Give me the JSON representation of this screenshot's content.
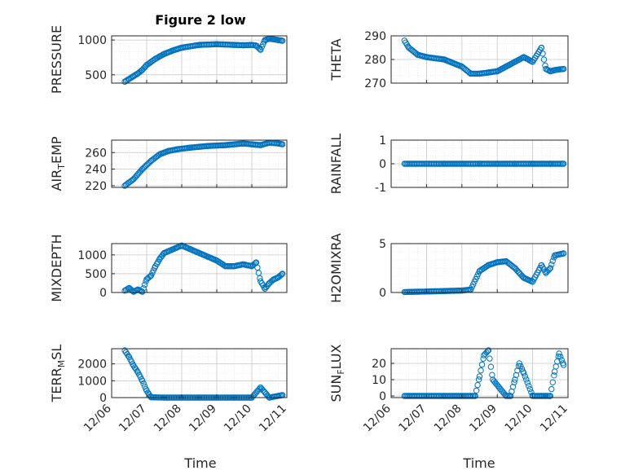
{
  "figure": {
    "title": "Figure 2 low",
    "xlabel": "Time"
  },
  "colors": {
    "marker": "#0072BD",
    "axis": "#262626",
    "grid": "#c8c8c8"
  },
  "chart_data": [
    {
      "type": "scatter",
      "ylabel_main": "PRESSURE",
      "ylabel_sub": "",
      "ylim": [
        380,
        1060
      ],
      "yticks": [
        "500",
        "1000"
      ],
      "ytick_values": [
        500,
        1000
      ],
      "xlim": [
        "12/06",
        "12/11"
      ],
      "xticks": [],
      "grid": true,
      "x": [
        "12/06 09:00",
        "12/06 12:00",
        "12/06 15:00",
        "12/06 18:00",
        "12/06 21:00",
        "12/07 00:00",
        "12/07 06:00",
        "12/07 12:00",
        "12/07 18:00",
        "12/08 00:00",
        "12/08 12:00",
        "12/09 00:00",
        "12/09 12:00",
        "12/09 18:00",
        "12/10 00:00",
        "12/10 03:00",
        "12/10 06:00",
        "12/10 09:00",
        "12/10 12:00",
        "12/10 15:00",
        "12/10 18:00",
        "12/10 21:00"
      ],
      "y": [
        400,
        440,
        480,
        520,
        570,
        640,
        730,
        800,
        850,
        890,
        930,
        940,
        930,
        925,
        930,
        920,
        860,
        1000,
        1020,
        1010,
        1000,
        990
      ]
    },
    {
      "type": "scatter",
      "ylabel_main": "THETA",
      "ylabel_sub": "",
      "ylim": [
        270,
        290
      ],
      "yticks": [
        "270",
        "280",
        "290"
      ],
      "ytick_values": [
        270,
        280,
        290
      ],
      "xlim": [
        "12/06",
        "12/11"
      ],
      "xticks": [],
      "grid": true,
      "x": [
        "12/06 09:00",
        "12/06 12:00",
        "12/06 18:00",
        "12/07 00:00",
        "12/07 12:00",
        "12/08 00:00",
        "12/08 06:00",
        "12/08 12:00",
        "12/08 18:00",
        "12/09 00:00",
        "12/09 06:00",
        "12/09 12:00",
        "12/09 18:00",
        "12/10 00:00",
        "12/10 06:00",
        "12/10 09:00",
        "12/10 12:00",
        "12/10 15:00",
        "12/10 18:00",
        "12/10 21:00"
      ],
      "y": [
        288,
        285,
        282,
        281,
        280,
        277,
        274,
        274,
        274.5,
        275,
        277,
        279,
        281,
        279,
        285,
        276,
        275,
        275.5,
        275.8,
        276
      ]
    },
    {
      "type": "scatter",
      "ylabel_main": "AIR",
      "ylabel_sub": "T",
      "ylabel_tail": "EMP",
      "ylim": [
        218,
        275
      ],
      "yticks": [
        "220",
        "240",
        "260"
      ],
      "ytick_values": [
        220,
        240,
        260
      ],
      "xlim": [
        "12/06",
        "12/11"
      ],
      "xticks": [],
      "grid": true,
      "x": [
        "12/06 09:00",
        "12/06 15:00",
        "12/06 21:00",
        "12/07 03:00",
        "12/07 09:00",
        "12/07 15:00",
        "12/07 21:00",
        "12/08 06:00",
        "12/08 18:00",
        "12/09 06:00",
        "12/09 18:00",
        "12/10 00:00",
        "12/10 06:00",
        "12/10 12:00",
        "12/10 18:00",
        "12/10 21:00"
      ],
      "y": [
        220,
        228,
        240,
        250,
        258,
        262,
        264,
        266,
        268,
        269,
        271,
        270,
        269,
        272,
        271,
        270
      ]
    },
    {
      "type": "scatter",
      "ylabel_main": "RAINFALL",
      "ylabel_sub": "",
      "ylim": [
        -1,
        1
      ],
      "yticks": [
        "-1",
        "0",
        "1"
      ],
      "ytick_values": [
        -1,
        0,
        1
      ],
      "xlim": [
        "12/06",
        "12/11"
      ],
      "xticks": [],
      "grid": true,
      "x": [
        "12/06 09:00",
        "12/07 00:00",
        "12/07 12:00",
        "12/08 00:00",
        "12/08 12:00",
        "12/09 00:00",
        "12/09 12:00",
        "12/10 00:00",
        "12/10 12:00",
        "12/10 21:00"
      ],
      "y": [
        0,
        0,
        0,
        0,
        0,
        0,
        0,
        0,
        0,
        0
      ]
    },
    {
      "type": "scatter",
      "ylabel_main": "MIXDEPTH",
      "ylabel_sub": "",
      "ylim": [
        0,
        1300
      ],
      "yticks": [
        "0",
        "500",
        "1000"
      ],
      "ytick_values": [
        0,
        500,
        1000
      ],
      "xlim": [
        "12/06",
        "12/11"
      ],
      "xticks": [],
      "grid": true,
      "x": [
        "12/06 09:00",
        "12/06 12:00",
        "12/06 15:00",
        "12/06 18:00",
        "12/06 21:00",
        "12/07 00:00",
        "12/07 03:00",
        "12/07 06:00",
        "12/07 09:00",
        "12/07 12:00",
        "12/07 18:00",
        "12/08 00:00",
        "12/08 06:00",
        "12/08 12:00",
        "12/08 18:00",
        "12/09 00:00",
        "12/09 06:00",
        "12/09 12:00",
        "12/09 18:00",
        "12/10 00:00",
        "12/10 03:00",
        "12/10 06:00",
        "12/10 09:00",
        "12/10 12:00",
        "12/10 15:00",
        "12/10 18:00",
        "12/10 21:00"
      ],
      "y": [
        50,
        120,
        20,
        80,
        20,
        350,
        450,
        700,
        900,
        1050,
        1150,
        1250,
        1150,
        1050,
        950,
        850,
        700,
        700,
        750,
        700,
        800,
        300,
        100,
        250,
        350,
        400,
        500
      ]
    },
    {
      "type": "scatter",
      "ylabel_main": "H2OMIXRA",
      "ylabel_sub": "",
      "ylim": [
        0,
        5
      ],
      "yticks": [
        "0",
        "5"
      ],
      "ytick_values": [
        0,
        5
      ],
      "xlim": [
        "12/06",
        "12/11"
      ],
      "xticks": [],
      "grid": true,
      "x": [
        "12/06 09:00",
        "12/07 00:00",
        "12/07 12:00",
        "12/08 00:00",
        "12/08 06:00",
        "12/08 12:00",
        "12/08 18:00",
        "12/09 00:00",
        "12/09 06:00",
        "12/09 12:00",
        "12/09 15:00",
        "12/09 18:00",
        "12/10 00:00",
        "12/10 06:00",
        "12/10 09:00",
        "12/10 12:00",
        "12/10 15:00",
        "12/10 21:00"
      ],
      "y": [
        0.05,
        0.1,
        0.15,
        0.2,
        0.3,
        2.2,
        2.8,
        3.1,
        3.2,
        2.5,
        2.0,
        1.5,
        1.1,
        2.8,
        2.0,
        2.5,
        3.8,
        4.0
      ]
    },
    {
      "type": "scatter",
      "ylabel_main": "TERR",
      "ylabel_sub": "M",
      "ylabel_tail": "SL",
      "ylim": [
        0,
        2900
      ],
      "yticks": [
        "0",
        "1000",
        "2000"
      ],
      "ytick_values": [
        0,
        1000,
        2000
      ],
      "xlim": [
        "12/06",
        "12/11"
      ],
      "xticks": [
        "12/06",
        "12/07",
        "12/08",
        "12/09",
        "12/10",
        "12/11"
      ],
      "grid": true,
      "x": [
        "12/06 09:00",
        "12/06 12:00",
        "12/06 15:00",
        "12/06 18:00",
        "12/06 21:00",
        "12/07 00:00",
        "12/07 03:00",
        "12/07 12:00",
        "12/08 00:00",
        "12/08 12:00",
        "12/09 00:00",
        "12/09 12:00",
        "12/10 00:00",
        "12/10 06:00",
        "12/10 09:00",
        "12/10 12:00",
        "12/10 18:00",
        "12/10 21:00"
      ],
      "y": [
        2800,
        2400,
        1900,
        1500,
        1000,
        400,
        20,
        0,
        0,
        0,
        0,
        0,
        0,
        600,
        300,
        0,
        100,
        150
      ]
    },
    {
      "type": "scatter",
      "ylabel_main": "SUN",
      "ylabel_sub": "F",
      "ylabel_tail": "LUX",
      "ylim": [
        -1,
        29
      ],
      "yticks": [
        "0",
        "10",
        "20"
      ],
      "ytick_values": [
        0,
        10,
        20
      ],
      "xlim": [
        "12/06",
        "12/11"
      ],
      "xticks": [
        "12/06",
        "12/07",
        "12/08",
        "12/09",
        "12/10",
        "12/11"
      ],
      "grid": true,
      "x": [
        "12/06 09:00",
        "12/07 00:00",
        "12/07 12:00",
        "12/08 00:00",
        "12/08 09:00",
        "12/08 12:00",
        "12/08 15:00",
        "12/08 18:00",
        "12/08 21:00",
        "12/09 06:00",
        "12/09 09:00",
        "12/09 12:00",
        "12/09 15:00",
        "12/09 18:00",
        "12/10 00:00",
        "12/10 06:00",
        "12/10 09:00",
        "12/10 12:00",
        "12/10 15:00",
        "12/10 18:00",
        "12/10 21:00"
      ],
      "y": [
        0,
        0,
        0,
        0,
        0,
        12,
        25,
        28,
        10,
        0,
        0,
        10,
        20,
        14,
        0,
        0,
        0,
        0,
        15,
        26,
        19
      ]
    }
  ]
}
